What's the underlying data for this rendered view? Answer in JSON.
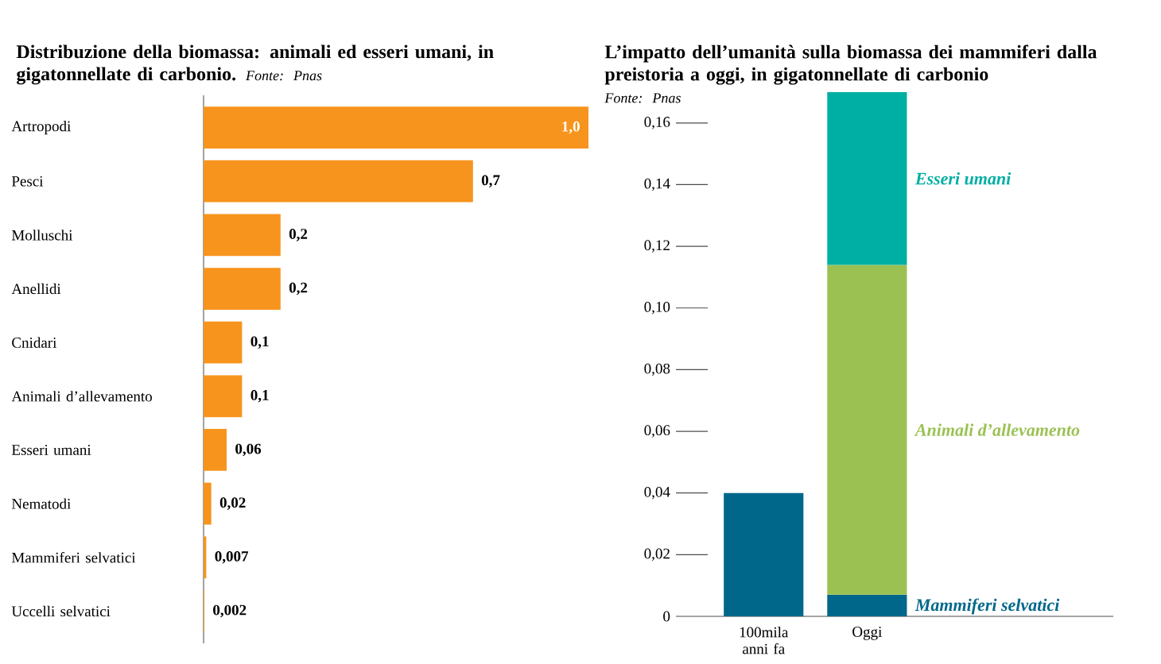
{
  "chart_data": [
    {
      "type": "bar",
      "orientation": "horizontal",
      "title": "Distribuzione della biomassa: animali ed esseri umani, in gigatonnellate di carbonio.",
      "annotations": [
        "Fonte: Pnas"
      ],
      "categories": [
        "Artropodi",
        "Pesci",
        "Molluschi",
        "Anellidi",
        "Cnidari",
        "Animali d’allevamento",
        "Esseri umani",
        "Nematodi",
        "Mammiferi selvatici",
        "Uccelli selvatici"
      ],
      "values": [
        1.0,
        0.7,
        0.2,
        0.2,
        0.1,
        0.1,
        0.06,
        0.02,
        0.007,
        0.002
      ],
      "value_labels": [
        "1,0",
        "0,7",
        "0,2",
        "0,2",
        "0,1",
        "0,1",
        "0,06",
        "0,02",
        "0,007",
        "0,002"
      ],
      "color": "#f7941d"
    },
    {
      "type": "bar",
      "stacked": true,
      "title": "L’impatto dell’umanità sulla biomassa dei mammiferi dalla preistoria a oggi, in gigatonnellate di carbonio",
      "annotations": [
        "Fonte: Pnas"
      ],
      "categories": [
        "100mila anni fa",
        "Oggi"
      ],
      "series": [
        {
          "name": "Mammiferi selvatici",
          "color": "#00678a",
          "values": [
            0.04,
            0.007
          ]
        },
        {
          "name": "Animali d’allevamento",
          "color": "#9bc153",
          "values": [
            null,
            0.107
          ]
        },
        {
          "name": "Esseri umani",
          "color": "#00afa4",
          "values": [
            null,
            0.056
          ]
        }
      ],
      "ylim": [
        0,
        0.17
      ],
      "yticks": [
        0,
        {
          "value": 0.02,
          "label": "0,02"
        },
        {
          "value": 0.04,
          "label": "0,04"
        },
        {
          "value": 0.06,
          "label": "0,06"
        },
        {
          "value": 0.08,
          "label": "0,08"
        },
        {
          "value": 0.1,
          "label": "0,10"
        },
        {
          "value": 0.12,
          "label": "0,12"
        },
        {
          "value": 0.14,
          "label": "0,14"
        },
        {
          "value": 0.16,
          "label": "0,16"
        }
      ]
    }
  ]
}
